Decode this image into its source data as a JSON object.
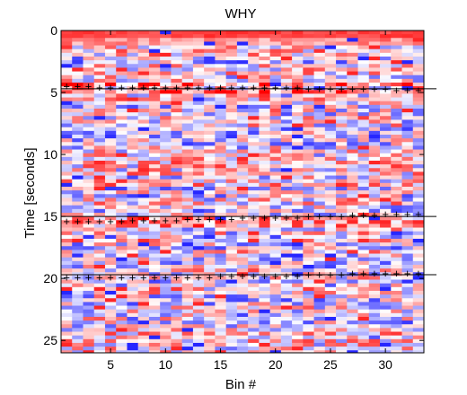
{
  "chart_data": {
    "type": "heatmap",
    "title": "WHY",
    "xlabel": "Bin #",
    "ylabel": "Time [seconds]",
    "xlim": [
      0.5,
      33.5
    ],
    "ylim": [
      0,
      26
    ],
    "y_reversed": true,
    "xticks": [
      5,
      10,
      15,
      20,
      25,
      30
    ],
    "yticks": [
      0,
      5,
      10,
      15,
      20,
      25
    ],
    "n_bins": 33,
    "colormap": [
      "#0000ff",
      "#ffffff",
      "#ff0000"
    ],
    "color_range": [
      -1,
      1
    ],
    "boundary_lines": [
      4.7,
      15.0,
      19.7
    ],
    "tracked_boundaries": [
      {
        "x": [
          1,
          2,
          3,
          4,
          5,
          6,
          7,
          8,
          9,
          10,
          11,
          12,
          13,
          14,
          15,
          16,
          17,
          18,
          19,
          20,
          21,
          22,
          23,
          24,
          25,
          26,
          27,
          28,
          29,
          30,
          31,
          32,
          33
        ],
        "y": [
          4.5,
          4.5,
          4.5,
          4.6,
          4.6,
          4.6,
          4.6,
          4.6,
          4.6,
          4.6,
          4.6,
          4.6,
          4.6,
          4.6,
          4.6,
          4.6,
          4.6,
          4.6,
          4.6,
          4.6,
          4.6,
          4.6,
          4.7,
          4.7,
          4.7,
          4.7,
          4.7,
          4.7,
          4.7,
          4.7,
          4.8,
          4.8,
          4.8
        ]
      },
      {
        "x": [
          1,
          2,
          3,
          4,
          5,
          6,
          7,
          8,
          9,
          10,
          11,
          12,
          13,
          14,
          15,
          16,
          17,
          18,
          19,
          20,
          21,
          22,
          23,
          24,
          25,
          26,
          27,
          28,
          29,
          30,
          31,
          32,
          33
        ],
        "y": [
          15.4,
          15.4,
          15.4,
          15.4,
          15.4,
          15.4,
          15.3,
          15.3,
          15.3,
          15.3,
          15.3,
          15.2,
          15.2,
          15.2,
          15.2,
          15.2,
          15.1,
          15.1,
          15.1,
          15.1,
          15.1,
          15.1,
          15.0,
          15.0,
          15.0,
          15.0,
          14.9,
          14.9,
          14.9,
          14.8,
          14.8,
          14.8,
          14.8
        ]
      },
      {
        "x": [
          1,
          2,
          3,
          4,
          5,
          6,
          7,
          8,
          9,
          10,
          11,
          12,
          13,
          14,
          15,
          16,
          17,
          18,
          19,
          20,
          21,
          22,
          23,
          24,
          25,
          26,
          27,
          28,
          29,
          30,
          31,
          32,
          33
        ],
        "y": [
          19.9,
          19.9,
          19.9,
          19.9,
          19.9,
          19.9,
          19.9,
          19.9,
          19.9,
          19.9,
          19.9,
          19.9,
          19.9,
          19.9,
          19.8,
          19.8,
          19.8,
          19.8,
          19.8,
          19.8,
          19.8,
          19.8,
          19.7,
          19.7,
          19.7,
          19.7,
          19.6,
          19.6,
          19.6,
          19.6,
          19.6,
          19.6,
          19.6
        ]
      }
    ],
    "marker_glyph": "+"
  }
}
